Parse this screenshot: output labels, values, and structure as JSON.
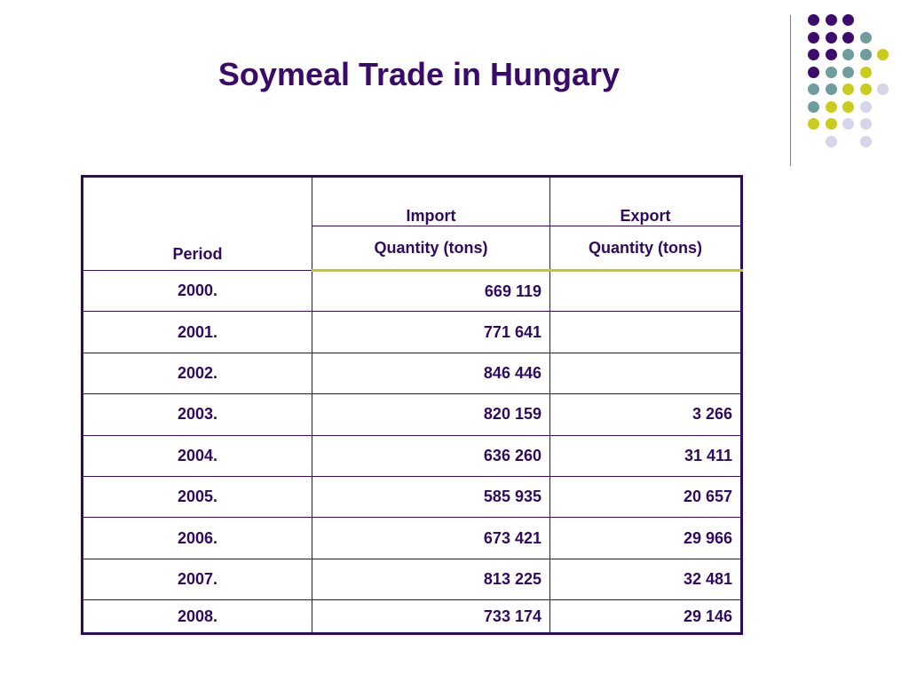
{
  "slide": {
    "title": "Soymeal Trade in Hungary"
  },
  "decoration": {
    "dot_colors": {
      "purple": "#3e0c6e",
      "teal": "#6f9c9c",
      "yellow": "#c9cc1a",
      "lavender": "#d6d6ea"
    },
    "rule_color": "#7f7f7f"
  },
  "table": {
    "header_period": "Period",
    "header_import": "Import",
    "header_export": "Export",
    "header_import_unit": "Quantity (tons)",
    "header_export_unit": "Quantity (tons)",
    "border_color": "#2f0a5e",
    "header_divider_color": "#c9c816",
    "rows": [
      {
        "period": "2000.",
        "import": "669 119",
        "export": ""
      },
      {
        "period": "2001.",
        "import": "771 641",
        "export": ""
      },
      {
        "period": "2002.",
        "import": "846 446",
        "export": ""
      },
      {
        "period": "2003.",
        "import": "820 159",
        "export": "3 266"
      },
      {
        "period": "2004.",
        "import": "636 260",
        "export": "31 411"
      },
      {
        "period": "2005.",
        "import": "585 935",
        "export": "20 657"
      },
      {
        "period": "2006.",
        "import": "673 421",
        "export": "29 966"
      },
      {
        "period": "2007.",
        "import": "813 225",
        "export": "32 481"
      },
      {
        "period": "2008.",
        "import": "733 174",
        "export": "29 146"
      }
    ]
  }
}
